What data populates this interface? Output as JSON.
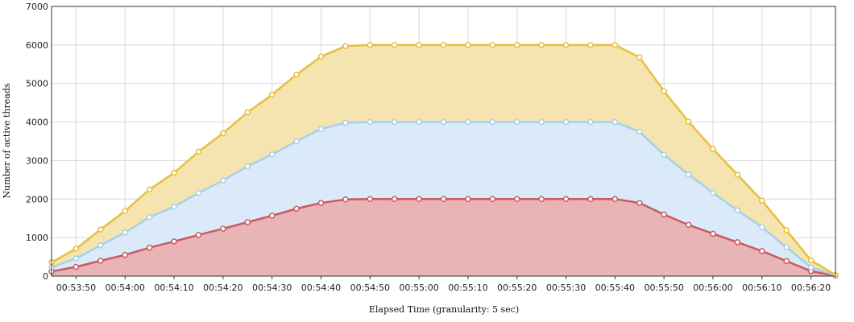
{
  "chart_data": {
    "type": "area",
    "stacked": true,
    "xlabel": "Elapsed Time (granularity: 5 sec)",
    "ylabel": "Number of active threads",
    "ylim": [
      0,
      7000
    ],
    "yticks": [
      0,
      1000,
      2000,
      3000,
      4000,
      5000,
      6000,
      7000
    ],
    "xticks": [
      "00:53:50",
      "00:54:00",
      "00:54:10",
      "00:54:20",
      "00:54:30",
      "00:54:40",
      "00:54:50",
      "00:55:00",
      "00:55:10",
      "00:55:20",
      "00:55:30",
      "00:55:40",
      "00:55:50",
      "00:56:00",
      "00:56:10",
      "00:56:20"
    ],
    "x": [
      "00:53:45",
      "00:53:50",
      "00:53:55",
      "00:54:00",
      "00:54:05",
      "00:54:10",
      "00:54:15",
      "00:54:20",
      "00:54:25",
      "00:54:30",
      "00:54:35",
      "00:54:40",
      "00:54:45",
      "00:54:50",
      "00:54:55",
      "00:55:00",
      "00:55:05",
      "00:55:10",
      "00:55:15",
      "00:55:20",
      "00:55:25",
      "00:55:30",
      "00:55:35",
      "00:55:40",
      "00:55:45",
      "00:55:50",
      "00:55:55",
      "00:56:00",
      "00:56:05",
      "00:56:10",
      "00:56:15",
      "00:56:20",
      "00:56:25"
    ],
    "grid": true,
    "series": [
      {
        "color": "#c85a64",
        "fill": "#e8b4b6",
        "values": [
          120,
          240,
          400,
          550,
          740,
          900,
          1070,
          1230,
          1400,
          1570,
          1750,
          1900,
          1990,
          2000,
          2000,
          2000,
          2000,
          2000,
          2000,
          2000,
          2000,
          2000,
          2000,
          2000,
          1900,
          1600,
          1330,
          1100,
          880,
          650,
          390,
          130,
          10
        ]
      },
      {
        "color": "#a8cfe8",
        "fill": "#dbeaf8",
        "values": [
          110,
          220,
          400,
          580,
          790,
          900,
          1090,
          1250,
          1450,
          1590,
          1750,
          1920,
          1990,
          2000,
          2000,
          2000,
          2000,
          2000,
          2000,
          2000,
          2000,
          2000,
          2000,
          2000,
          1850,
          1550,
          1310,
          1060,
          830,
          620,
          360,
          100,
          10
        ]
      },
      {
        "color": "#e8bf3c",
        "fill": "#f6e4b0",
        "values": [
          130,
          250,
          410,
          560,
          720,
          880,
          1070,
          1230,
          1400,
          1550,
          1730,
          1880,
          1990,
          2000,
          2000,
          2000,
          2000,
          2000,
          2000,
          2000,
          2000,
          2000,
          2000,
          2000,
          1930,
          1650,
          1370,
          1140,
          920,
          690,
          440,
          180,
          10
        ]
      }
    ]
  }
}
